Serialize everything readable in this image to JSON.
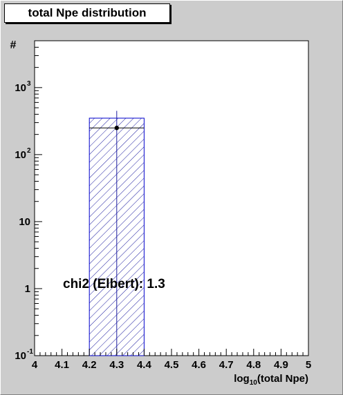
{
  "window": {
    "title": "total Npe distribution"
  },
  "chart_data": {
    "type": "bar",
    "title": "total Npe distribution",
    "xlabel": "log10(total Npe)",
    "ylabel": "#",
    "xlim": [
      4,
      5
    ],
    "ylim": [
      0.1,
      5000
    ],
    "y_scale": "log",
    "x_ticks": [
      "4",
      "4.1",
      "4.2",
      "4.3",
      "4.4",
      "4.5",
      "4.6",
      "4.7",
      "4.8",
      "4.9",
      "5"
    ],
    "y_ticks": [
      {
        "value": 0.1,
        "base": "10",
        "exp": "-1"
      },
      {
        "value": 1,
        "base": "1",
        "exp": ""
      },
      {
        "value": 10,
        "base": "10",
        "exp": ""
      },
      {
        "value": 100,
        "base": "10",
        "exp": "2"
      },
      {
        "value": 1000,
        "base": "10",
        "exp": "3"
      }
    ],
    "series": [
      {
        "style": "hatched-histogram",
        "color": "#0000cc",
        "bins": [
          {
            "x0": 4.2,
            "x1": 4.4,
            "value": 350
          }
        ],
        "inner_line": 250
      },
      {
        "style": "points-with-error",
        "color": "#000000",
        "points": [
          {
            "x": 4.3,
            "y": 250,
            "y_err_high": 450,
            "y_err_low": 0.1
          }
        ]
      }
    ],
    "annotation": "chi2 (Elbert): 1.3",
    "grid": false,
    "legend": "none"
  }
}
